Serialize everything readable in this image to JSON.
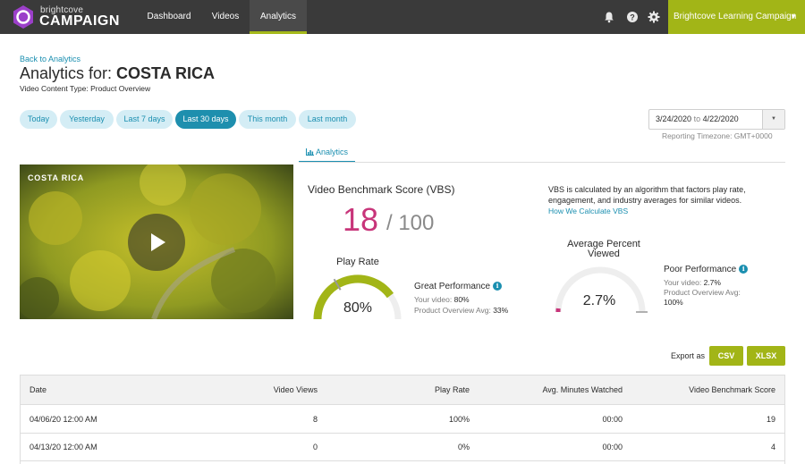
{
  "nav": {
    "logo_small": "brightcove",
    "logo_big": "CAMPAIGN",
    "tabs": [
      "Dashboard",
      "Videos",
      "Analytics"
    ],
    "active_tab": "Analytics",
    "icons": [
      "bell-icon",
      "help-icon",
      "gear-icon"
    ],
    "account": "Brightcove Learning Campaign",
    "account_caret": "▼"
  },
  "header": {
    "back_link": "Back to Analytics",
    "title_prefix": "Analytics for: ",
    "title_name": "COSTA RICA",
    "subtitle": "Video Content Type: Product Overview"
  },
  "date_ranges": [
    "Today",
    "Yesterday",
    "Last 7 days",
    "Last 30 days",
    "This month",
    "Last month"
  ],
  "active_range": "Last 30 days",
  "date_picker": {
    "start": "3/24/2020",
    "to": "to",
    "end": "4/22/2020",
    "dropdown": "▼",
    "timezone": "Reporting Timezone: GMT+0000"
  },
  "tab": {
    "label": "Analytics"
  },
  "video": {
    "title": "COSTA RICA"
  },
  "vbs": {
    "title": "Video Benchmark Score (VBS)",
    "score": "18",
    "max": "/ 100",
    "description": "VBS is calculated by an algorithm that factors play rate, engagement, and industry averages for similar videos.",
    "link": "How We Calculate VBS"
  },
  "play_rate": {
    "title": "Play Rate",
    "value_text": "80%",
    "fraction": 0.8,
    "avg_fraction": 0.33,
    "color": "#a2b517",
    "performance": "Great Performance",
    "your_label": "Your video: ",
    "your_value": "80%",
    "avg_label": "Product Overview Avg: ",
    "avg_value": "33%"
  },
  "percent_viewed": {
    "title": "Average Percent Viewed",
    "value_text": "2.7%",
    "fraction": 0.027,
    "avg_fraction": 1.0,
    "color": "#c8357a",
    "performance": "Poor Performance",
    "your_label": "Your video: ",
    "your_value": "2.7%",
    "avg_label": "Product Overview Avg:",
    "avg_value": "100%"
  },
  "export": {
    "label": "Export as",
    "csv": "CSV",
    "xlsx": "XLSX"
  },
  "table": {
    "columns": [
      "Date",
      "Video Views",
      "Play Rate",
      "Avg. Minutes Watched",
      "Video Benchmark Score"
    ],
    "rows": [
      [
        "04/06/20 12:00 AM",
        "8",
        "100%",
        "00:00",
        "19"
      ],
      [
        "04/13/20 12:00 AM",
        "0",
        "0%",
        "00:00",
        "4"
      ]
    ]
  },
  "colors": {
    "accent_green": "#a2b517",
    "link_blue": "#1b8fb0",
    "score_pink": "#c8357a",
    "nav_dark": "#3a3a3a"
  }
}
